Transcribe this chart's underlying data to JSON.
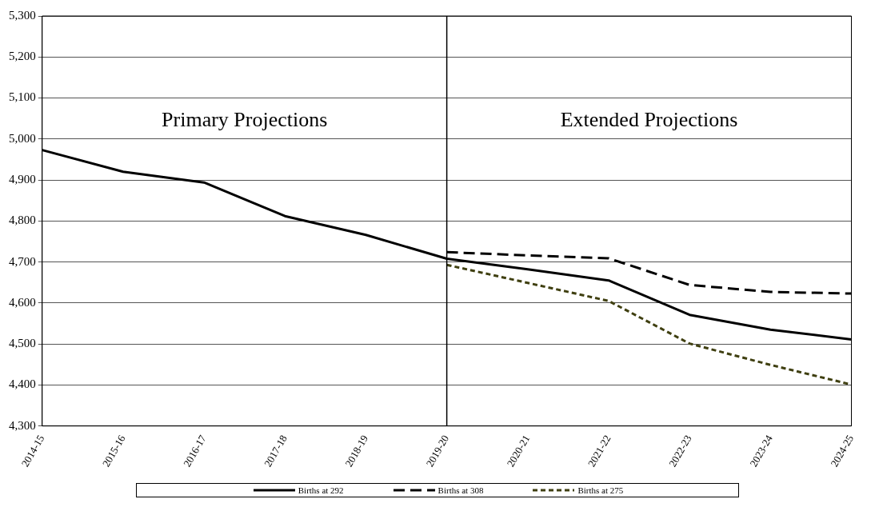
{
  "chart_data": {
    "type": "line",
    "categories": [
      "2014-15",
      "2015-16",
      "2016-17",
      "2017-18",
      "2018-19",
      "2019-20",
      "2020-21",
      "2021-22",
      "2022-23",
      "2023-24",
      "2024-25"
    ],
    "series": [
      {
        "name": "Births at 292",
        "color": "#000000",
        "line_style": "solid",
        "values": [
          4973,
          4920,
          4894,
          4812,
          4766,
          4708,
          4682,
          4655,
          4571,
          4535,
          4511
        ]
      },
      {
        "name": "Births at 308",
        "color": "#000000",
        "line_style": "dashed",
        "values": [
          null,
          null,
          null,
          null,
          null,
          4724,
          4716,
          4709,
          4644,
          4627,
          4623
        ]
      },
      {
        "name": "Births at 275",
        "color": "#3f3f10",
        "line_style": "dotted",
        "values": [
          null,
          null,
          null,
          null,
          null,
          4693,
          4649,
          4605,
          4501,
          4449,
          4401
        ]
      }
    ],
    "ylim": [
      4300,
      5300
    ],
    "yticks": [
      {
        "value": 4300,
        "label": "4,300"
      },
      {
        "value": 4400,
        "label": "4,400"
      },
      {
        "value": 4500,
        "label": "4,500"
      },
      {
        "value": 4600,
        "label": "4,600"
      },
      {
        "value": 4700,
        "label": "4,700"
      },
      {
        "value": 4800,
        "label": "4,800"
      },
      {
        "value": 4900,
        "label": "4,900"
      },
      {
        "value": 5000,
        "label": "5,000"
      },
      {
        "value": 5100,
        "label": "5,100"
      },
      {
        "value": 5200,
        "label": "5,200"
      },
      {
        "value": 5300,
        "label": "5,300"
      }
    ],
    "ref_lines": [
      {
        "axis": "x",
        "value": "2019-20",
        "color": "#000000"
      }
    ],
    "annotations": [
      "Primary Projections",
      "Extended Projections"
    ],
    "grid": "y",
    "legend": "bottom",
    "marker": "none"
  }
}
